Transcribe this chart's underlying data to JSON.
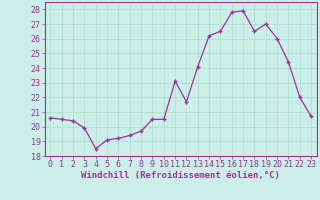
{
  "x": [
    0,
    1,
    2,
    3,
    4,
    5,
    6,
    7,
    8,
    9,
    10,
    11,
    12,
    13,
    14,
    15,
    16,
    17,
    18,
    19,
    20,
    21,
    22,
    23
  ],
  "y": [
    20.6,
    20.5,
    20.4,
    19.9,
    18.5,
    19.1,
    19.2,
    19.4,
    19.7,
    20.5,
    20.5,
    23.1,
    21.7,
    24.1,
    26.2,
    26.5,
    27.8,
    27.9,
    26.5,
    27.0,
    26.0,
    24.4,
    22.0,
    20.7
  ],
  "line_color": "#993399",
  "marker": "+",
  "marker_size": 4,
  "bg_color": "#cceee8",
  "grid_color": "#aaddcc",
  "tick_color": "#993399",
  "label_color": "#993399",
  "xlabel": "Windchill (Refroidissement éolien,°C)",
  "ylim": [
    18,
    28.5
  ],
  "yticks": [
    18,
    19,
    20,
    21,
    22,
    23,
    24,
    25,
    26,
    27,
    28
  ],
  "xticks": [
    0,
    1,
    2,
    3,
    4,
    5,
    6,
    7,
    8,
    9,
    10,
    11,
    12,
    13,
    14,
    15,
    16,
    17,
    18,
    19,
    20,
    21,
    22,
    23
  ],
  "xlabel_fontsize": 6.5,
  "tick_fontsize": 6.0
}
